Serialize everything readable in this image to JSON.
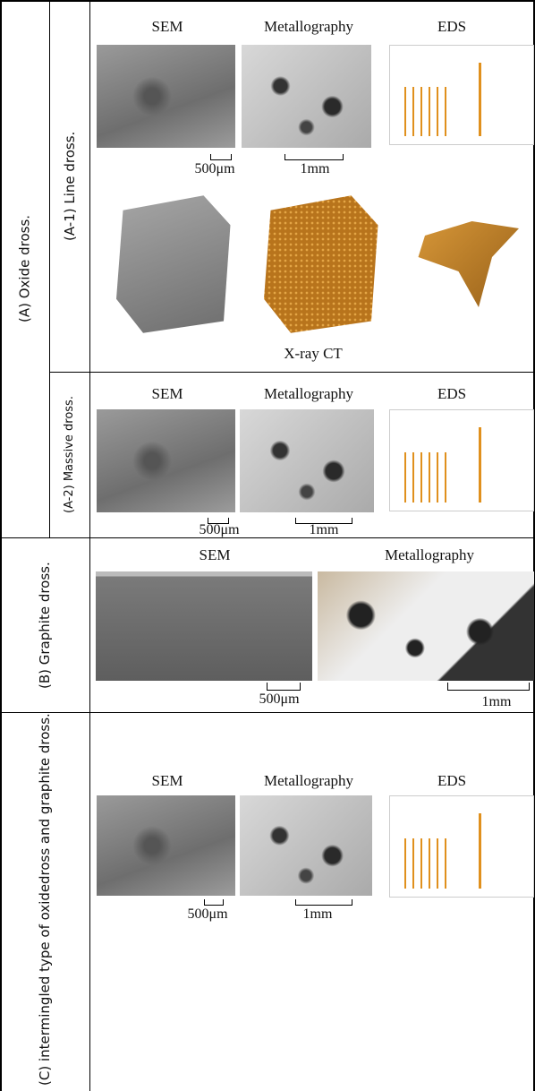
{
  "rows": [
    {
      "label": "(A) Oxide dross.",
      "subrows": [
        {
          "label": "(A-1) Line dross.",
          "headers": [
            "SEM",
            "Metallography",
            "EDS"
          ],
          "scales": [
            "500μm",
            "1mm"
          ],
          "caption": "X-ray CT"
        },
        {
          "label": "(A-2) Massive dross.",
          "headers": [
            "SEM",
            "Metallography",
            "EDS"
          ],
          "scales": [
            "500μm",
            "1mm"
          ]
        }
      ]
    },
    {
      "label": "(B) Graphite dross.",
      "headers": [
        "SEM",
        "Metallography"
      ],
      "scales": [
        "500μm",
        "1mm"
      ]
    },
    {
      "label_lines": [
        "(C) intermingled type of oxide",
        "dross and graphite dross."
      ],
      "headers": [
        "SEM",
        "Metallography",
        "EDS"
      ],
      "scales": [
        "500μm",
        "1mm"
      ]
    }
  ]
}
